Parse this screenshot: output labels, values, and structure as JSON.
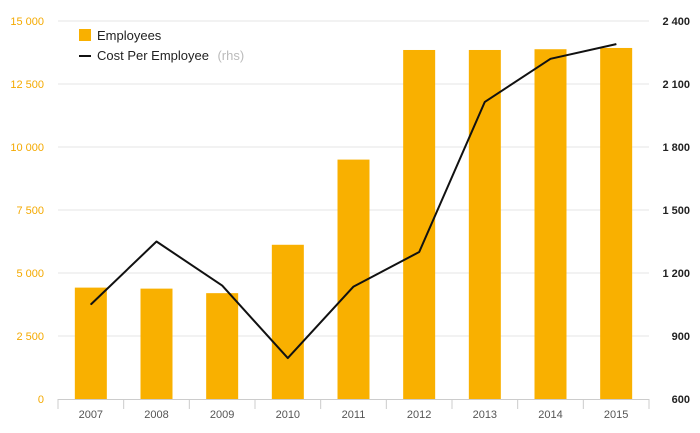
{
  "chart_data": {
    "type": "bar",
    "categories": [
      "2007",
      "2008",
      "2009",
      "2010",
      "2011",
      "2012",
      "2013",
      "2014",
      "2015"
    ],
    "series": [
      {
        "name": "Employees",
        "type": "bar",
        "axis": "left",
        "color": "#f9b000",
        "values": [
          4420,
          4380,
          4200,
          6120,
          9500,
          13850,
          13850,
          13880,
          13930
        ]
      },
      {
        "name": "Cost Per Employee",
        "name_note": "(rhs)",
        "type": "line",
        "axis": "right",
        "color": "#111111",
        "values": [
          1050,
          1350,
          1140,
          795,
          1135,
          1300,
          2015,
          2220,
          2290
        ]
      }
    ],
    "y_left": {
      "ylim": [
        0,
        15000
      ],
      "ticks": [
        0,
        2500,
        5000,
        7500,
        10000,
        12500,
        15000
      ],
      "tick_labels": [
        "0",
        "2 500",
        "5 000",
        "7 500",
        "10 000",
        "12 500",
        "15 000"
      ]
    },
    "y_right": {
      "ylim": [
        600,
        2400
      ],
      "ticks": [
        600,
        900,
        1200,
        1500,
        1800,
        2100,
        2400
      ],
      "tick_labels": [
        "600",
        "900",
        "1 200",
        "1 500",
        "1 800",
        "2 100",
        "2 400"
      ]
    },
    "legend_placement": "top-left",
    "grid": true
  }
}
